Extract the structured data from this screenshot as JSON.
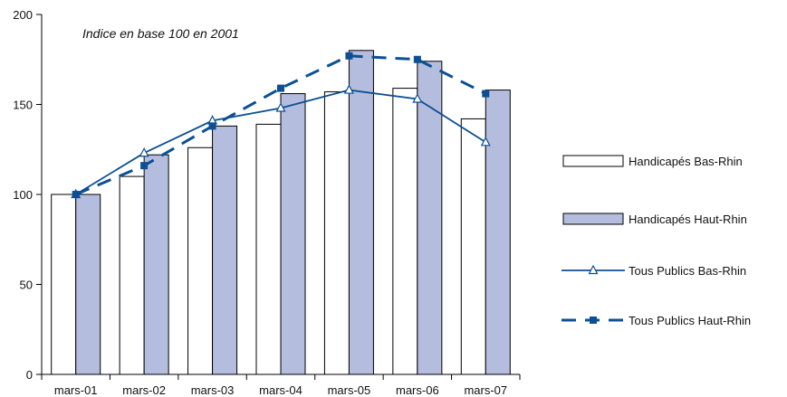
{
  "chart_data": {
    "type": "bar",
    "subtitle": "Indice en base 100 en 2001",
    "categories": [
      "mars-01",
      "mars-02",
      "mars-03",
      "mars-04",
      "mars-05",
      "mars-06",
      "mars-07"
    ],
    "ylim": [
      0,
      200
    ],
    "yticks": [
      "0",
      "50",
      "100",
      "150",
      "200"
    ],
    "grid": false,
    "legend_position": "right",
    "series": [
      {
        "name": "Handicapés Bas-Rhin",
        "kind": "bar",
        "color": "#ffffff",
        "edge": "#000000",
        "values": [
          100,
          110,
          126,
          139,
          157,
          159,
          142
        ]
      },
      {
        "name": "Handicapés Haut-Rhin",
        "kind": "bar",
        "color": "#b4bddd",
        "edge": "#000000",
        "values": [
          100,
          122,
          138,
          156,
          180,
          174,
          158
        ]
      },
      {
        "name": "Tous Publics Bas-Rhin",
        "kind": "line",
        "style": "solid",
        "marker": "triangle-open",
        "color": "#0b4f94",
        "values": [
          100,
          123,
          141,
          148,
          158,
          153,
          129
        ]
      },
      {
        "name": "Tous Publics Haut-Rhin",
        "kind": "line",
        "style": "dashed",
        "marker": "square",
        "color": "#0b4f94",
        "values": [
          100,
          116,
          138,
          159,
          177,
          175,
          156
        ]
      }
    ]
  }
}
